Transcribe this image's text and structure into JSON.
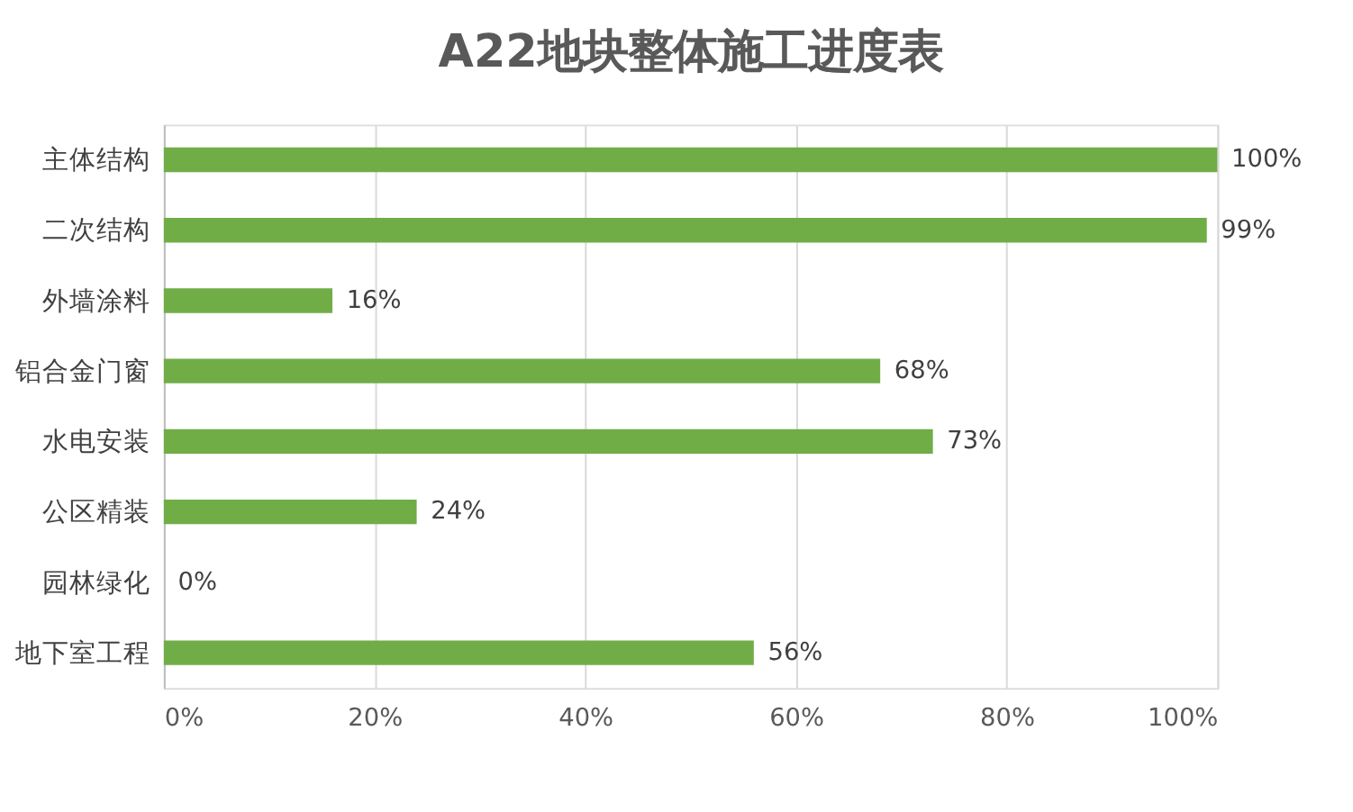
{
  "chart_data": {
    "type": "bar",
    "orientation": "horizontal",
    "title": "A22地块整体施工进度表",
    "categories": [
      "主体结构",
      "二次结构",
      "外墙涂料",
      "铝合金门窗",
      "水电安装",
      "公区精装",
      "园林绿化",
      "地下室工程"
    ],
    "values": [
      100,
      99,
      16,
      68,
      73,
      24,
      0,
      56
    ],
    "value_labels": [
      "100%",
      "99%",
      "16%",
      "68%",
      "73%",
      "24%",
      "0%",
      "56%"
    ],
    "color": "#70ad47",
    "xlim": [
      0,
      100
    ],
    "xticks": [
      {
        "value": 0,
        "label": "0%"
      },
      {
        "value": 20,
        "label": "20%"
      },
      {
        "value": 40,
        "label": "40%"
      },
      {
        "value": 60,
        "label": "60%"
      },
      {
        "value": 80,
        "label": "80%"
      },
      {
        "value": 100,
        "label": "100%"
      }
    ],
    "grid": "x"
  }
}
